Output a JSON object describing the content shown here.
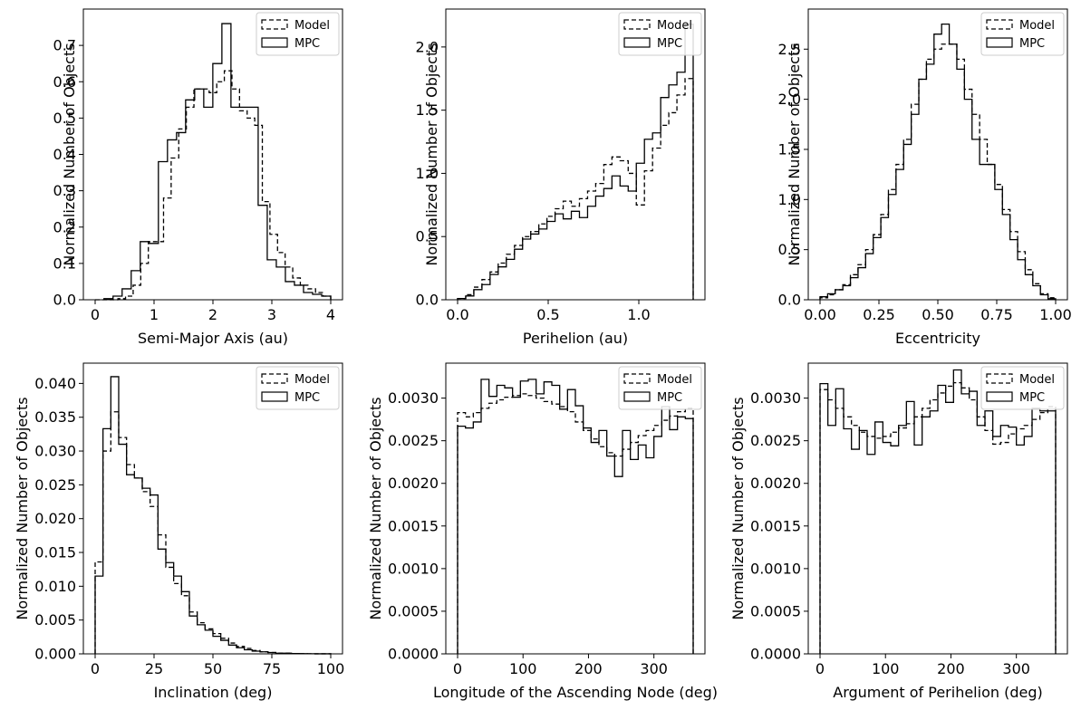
{
  "chart_data": [
    {
      "type": "histogram",
      "xlabel": "Semi-Major Axis (au)",
      "ylabel": "Normalized Number of Objects",
      "xlim": [
        -0.2,
        4.2
      ],
      "ylim": [
        0,
        0.8
      ],
      "xticks": [
        0,
        1,
        2,
        3,
        4
      ],
      "xtick_labels": [
        "0",
        "1",
        "2",
        "3",
        "4"
      ],
      "yticks": [
        0.0,
        0.1,
        0.2,
        0.3,
        0.4,
        0.5,
        0.6,
        0.7
      ],
      "ytick_labels": [
        "0.0",
        "0.1",
        "0.2",
        "0.3",
        "0.4",
        "0.5",
        "0.6",
        "0.7"
      ],
      "legend": [
        "Model",
        "MPC"
      ],
      "legend_position": "top-right",
      "series": [
        {
          "name": "Model",
          "style": "dashed",
          "edges": [
            0,
            4
          ],
          "values": [
            0,
            0,
            0,
            0.003,
            0.01,
            0.04,
            0.1,
            0.16,
            0.16,
            0.28,
            0.39,
            0.47,
            0.53,
            0.58,
            0.58,
            0.57,
            0.6,
            0.63,
            0.58,
            0.52,
            0.5,
            0.48,
            0.27,
            0.18,
            0.13,
            0.09,
            0.06,
            0.04,
            0.03,
            0.02,
            0.01
          ]
        },
        {
          "name": "MPC",
          "style": "solid",
          "edges": [
            0.15,
            4
          ],
          "values": [
            0.003,
            0.01,
            0.03,
            0.08,
            0.16,
            0.155,
            0.38,
            0.44,
            0.46,
            0.55,
            0.58,
            0.53,
            0.65,
            0.76,
            0.53,
            0.53,
            0.53,
            0.26,
            0.11,
            0.09,
            0.05,
            0.04,
            0.02,
            0.015,
            0.01
          ]
        }
      ]
    },
    {
      "type": "histogram",
      "xlabel": "Perihelion (au)",
      "ylabel": "Normalized Number of Objects",
      "xlim": [
        -0.065,
        1.365
      ],
      "ylim": [
        0,
        2.3
      ],
      "xticks": [
        0,
        0.5,
        1.0
      ],
      "xtick_labels": [
        "0.0",
        "0.5",
        "1.0"
      ],
      "yticks": [
        0.0,
        0.5,
        1.0,
        1.5,
        2.0
      ],
      "ytick_labels": [
        "0.0",
        "0.5",
        "1.0",
        "1.5",
        "2.0"
      ],
      "legend": [
        "Model",
        "MPC"
      ],
      "legend_position": "top-right",
      "series": [
        {
          "name": "Model",
          "style": "dashed",
          "edges": [
            0,
            1.3
          ],
          "values": [
            0.01,
            0.04,
            0.1,
            0.16,
            0.22,
            0.29,
            0.36,
            0.43,
            0.5,
            0.54,
            0.6,
            0.66,
            0.72,
            0.78,
            0.74,
            0.8,
            0.86,
            0.92,
            1.07,
            1.13,
            1.1,
            1.0,
            0.75,
            1.02,
            1.2,
            1.38,
            1.48,
            1.62,
            1.75
          ]
        },
        {
          "name": "MPC",
          "style": "solid",
          "edges": [
            0,
            1.3
          ],
          "values": [
            0.01,
            0.03,
            0.08,
            0.12,
            0.2,
            0.26,
            0.32,
            0.4,
            0.48,
            0.52,
            0.56,
            0.62,
            0.68,
            0.64,
            0.7,
            0.65,
            0.74,
            0.82,
            0.88,
            0.98,
            0.9,
            0.86,
            1.08,
            1.27,
            1.32,
            1.6,
            1.7,
            1.8,
            2.18
          ]
        }
      ]
    },
    {
      "type": "histogram",
      "xlabel": "Eccentricity",
      "ylabel": "Normalized Number of Objects",
      "xlim": [
        -0.05,
        1.05
      ],
      "ylim": [
        0,
        2.9
      ],
      "xticks": [
        0,
        0.25,
        0.5,
        0.75,
        1.0
      ],
      "xtick_labels": [
        "0.00",
        "0.25",
        "0.50",
        "0.75",
        "1.00"
      ],
      "yticks": [
        0.0,
        0.5,
        1.0,
        1.5,
        2.0,
        2.5
      ],
      "ytick_labels": [
        "0.0",
        "0.5",
        "1.0",
        "1.5",
        "2.0",
        "2.5"
      ],
      "legend": [
        "Model",
        "MPC"
      ],
      "legend_position": "top-right",
      "series": [
        {
          "name": "Model",
          "style": "dashed",
          "edges": [
            0,
            1
          ],
          "values": [
            0.02,
            0.05,
            0.1,
            0.15,
            0.25,
            0.35,
            0.5,
            0.65,
            0.85,
            1.1,
            1.35,
            1.6,
            1.95,
            2.2,
            2.4,
            2.5,
            2.55,
            2.55,
            2.4,
            2.1,
            1.85,
            1.6,
            1.35,
            1.15,
            0.9,
            0.68,
            0.48,
            0.3,
            0.16,
            0.06,
            0.02
          ]
        },
        {
          "name": "MPC",
          "style": "solid",
          "edges": [
            0,
            1
          ],
          "values": [
            0.03,
            0.06,
            0.1,
            0.14,
            0.22,
            0.32,
            0.46,
            0.62,
            0.82,
            1.05,
            1.3,
            1.55,
            1.85,
            2.2,
            2.35,
            2.65,
            2.75,
            2.55,
            2.3,
            2.0,
            1.6,
            1.35,
            1.35,
            1.1,
            0.85,
            0.6,
            0.4,
            0.25,
            0.14,
            0.05,
            0.01
          ]
        }
      ]
    },
    {
      "type": "histogram",
      "xlabel": "Inclination (deg)",
      "ylabel": "Normalized Number of Objects",
      "xlim": [
        -5,
        105
      ],
      "ylim": [
        0,
        0.043
      ],
      "xticks": [
        0,
        25,
        50,
        75,
        100
      ],
      "xtick_labels": [
        "0",
        "25",
        "50",
        "75",
        "100"
      ],
      "yticks": [
        0.0,
        0.005,
        0.01,
        0.015,
        0.02,
        0.025,
        0.03,
        0.035,
        0.04
      ],
      "ytick_labels": [
        "0.000",
        "0.005",
        "0.010",
        "0.015",
        "0.020",
        "0.025",
        "0.030",
        "0.035",
        "0.040"
      ],
      "legend": [
        "Model",
        "MPC"
      ],
      "legend_position": "top-right",
      "series": [
        {
          "name": "Model",
          "style": "dashed",
          "edges": [
            0,
            100
          ],
          "values": [
            0.0136,
            0.03,
            0.0358,
            0.032,
            0.028,
            0.026,
            0.024,
            0.0218,
            0.0176,
            0.0128,
            0.0104,
            0.0086,
            0.0062,
            0.0046,
            0.0037,
            0.003,
            0.0023,
            0.0016,
            0.0011,
            0.0008,
            0.0005,
            0.0003,
            0.0002,
            0.0001,
            0.0001,
            5e-05,
            3e-05,
            2e-05,
            1e-05,
            1e-05
          ]
        },
        {
          "name": "MPC",
          "style": "solid",
          "edges": [
            0,
            100
          ],
          "values": [
            0.0115,
            0.0333,
            0.041,
            0.031,
            0.0265,
            0.026,
            0.0245,
            0.0235,
            0.0155,
            0.0135,
            0.0115,
            0.0092,
            0.0056,
            0.0043,
            0.0035,
            0.0026,
            0.002,
            0.0013,
            0.0009,
            0.0006,
            0.0004,
            0.0003,
            0.0002,
            0.0001,
            0.0001,
            5e-05,
            3e-05,
            2e-05,
            1e-05,
            1e-05
          ]
        }
      ]
    },
    {
      "type": "histogram",
      "xlabel": "Longitude of the Ascending Node (deg)",
      "ylabel": "Normalized Number of Objects",
      "xlim": [
        -18,
        378
      ],
      "ylim": [
        0,
        0.00341
      ],
      "xticks": [
        0,
        100,
        200,
        300
      ],
      "xtick_labels": [
        "0",
        "100",
        "200",
        "300"
      ],
      "yticks": [
        0.0,
        0.0005,
        0.001,
        0.0015,
        0.002,
        0.0025,
        0.003
      ],
      "ytick_labels": [
        "0.0000",
        "0.0005",
        "0.0010",
        "0.0015",
        "0.0020",
        "0.0025",
        "0.0030"
      ],
      "legend": [
        "Model",
        "MPC"
      ],
      "legend_position": "top-right",
      "series": [
        {
          "name": "Model",
          "style": "dashed",
          "edges": [
            0,
            360
          ],
          "values": [
            0.00283,
            0.00278,
            0.00283,
            0.00288,
            0.00294,
            0.00298,
            0.00301,
            0.00303,
            0.00305,
            0.00303,
            0.003,
            0.00296,
            0.00293,
            0.0029,
            0.00284,
            0.00272,
            0.00262,
            0.00252,
            0.00243,
            0.00236,
            0.00232,
            0.0024,
            0.00248,
            0.00256,
            0.00262,
            0.00268,
            0.00274,
            0.00279,
            0.00284,
            0.00288
          ]
        },
        {
          "name": "MPC",
          "style": "solid",
          "edges": [
            0,
            360
          ],
          "values": [
            0.00267,
            0.00265,
            0.00272,
            0.00322,
            0.00302,
            0.00315,
            0.00312,
            0.00301,
            0.0032,
            0.00322,
            0.00305,
            0.00319,
            0.00315,
            0.00287,
            0.0031,
            0.00291,
            0.00265,
            0.00248,
            0.00262,
            0.00232,
            0.00208,
            0.00262,
            0.00228,
            0.00245,
            0.0023,
            0.00255,
            0.0029,
            0.00263,
            0.00278,
            0.00276
          ]
        }
      ]
    },
    {
      "type": "histogram",
      "xlabel": "Argument of Perihelion (deg)",
      "ylabel": "Normalized Number of Objects",
      "xlim": [
        -18,
        378
      ],
      "ylim": [
        0,
        0.00341
      ],
      "xticks": [
        0,
        100,
        200,
        300
      ],
      "xtick_labels": [
        "0",
        "100",
        "200",
        "300"
      ],
      "yticks": [
        0.0,
        0.0005,
        0.001,
        0.0015,
        0.002,
        0.0025,
        0.003
      ],
      "ytick_labels": [
        "0.0000",
        "0.0005",
        "0.0010",
        "0.0015",
        "0.0020",
        "0.0025",
        "0.0030"
      ],
      "legend": [
        "Model",
        "MPC"
      ],
      "legend_position": "top-right",
      "series": [
        {
          "name": "Model",
          "style": "dashed",
          "edges": [
            0,
            360
          ],
          "values": [
            0.0031,
            0.00298,
            0.00288,
            0.00278,
            0.00268,
            0.0026,
            0.00255,
            0.00253,
            0.00255,
            0.0026,
            0.00265,
            0.0027,
            0.00278,
            0.00288,
            0.00298,
            0.00306,
            0.00314,
            0.00318,
            0.00312,
            0.00298,
            0.00278,
            0.00262,
            0.00246,
            0.00248,
            0.00258,
            0.00264,
            0.00268,
            0.00275,
            0.00283,
            0.0029
          ]
        },
        {
          "name": "MPC",
          "style": "solid",
          "edges": [
            0,
            360
          ],
          "values": [
            0.00317,
            0.00268,
            0.00311,
            0.00264,
            0.0024,
            0.00262,
            0.00234,
            0.00272,
            0.00248,
            0.00244,
            0.00268,
            0.00296,
            0.00245,
            0.00278,
            0.00285,
            0.00315,
            0.00295,
            0.00333,
            0.00305,
            0.00308,
            0.00268,
            0.00285,
            0.00255,
            0.00268,
            0.00266,
            0.00245,
            0.00255,
            0.00288,
            0.00285,
            0.00285
          ]
        }
      ]
    }
  ]
}
